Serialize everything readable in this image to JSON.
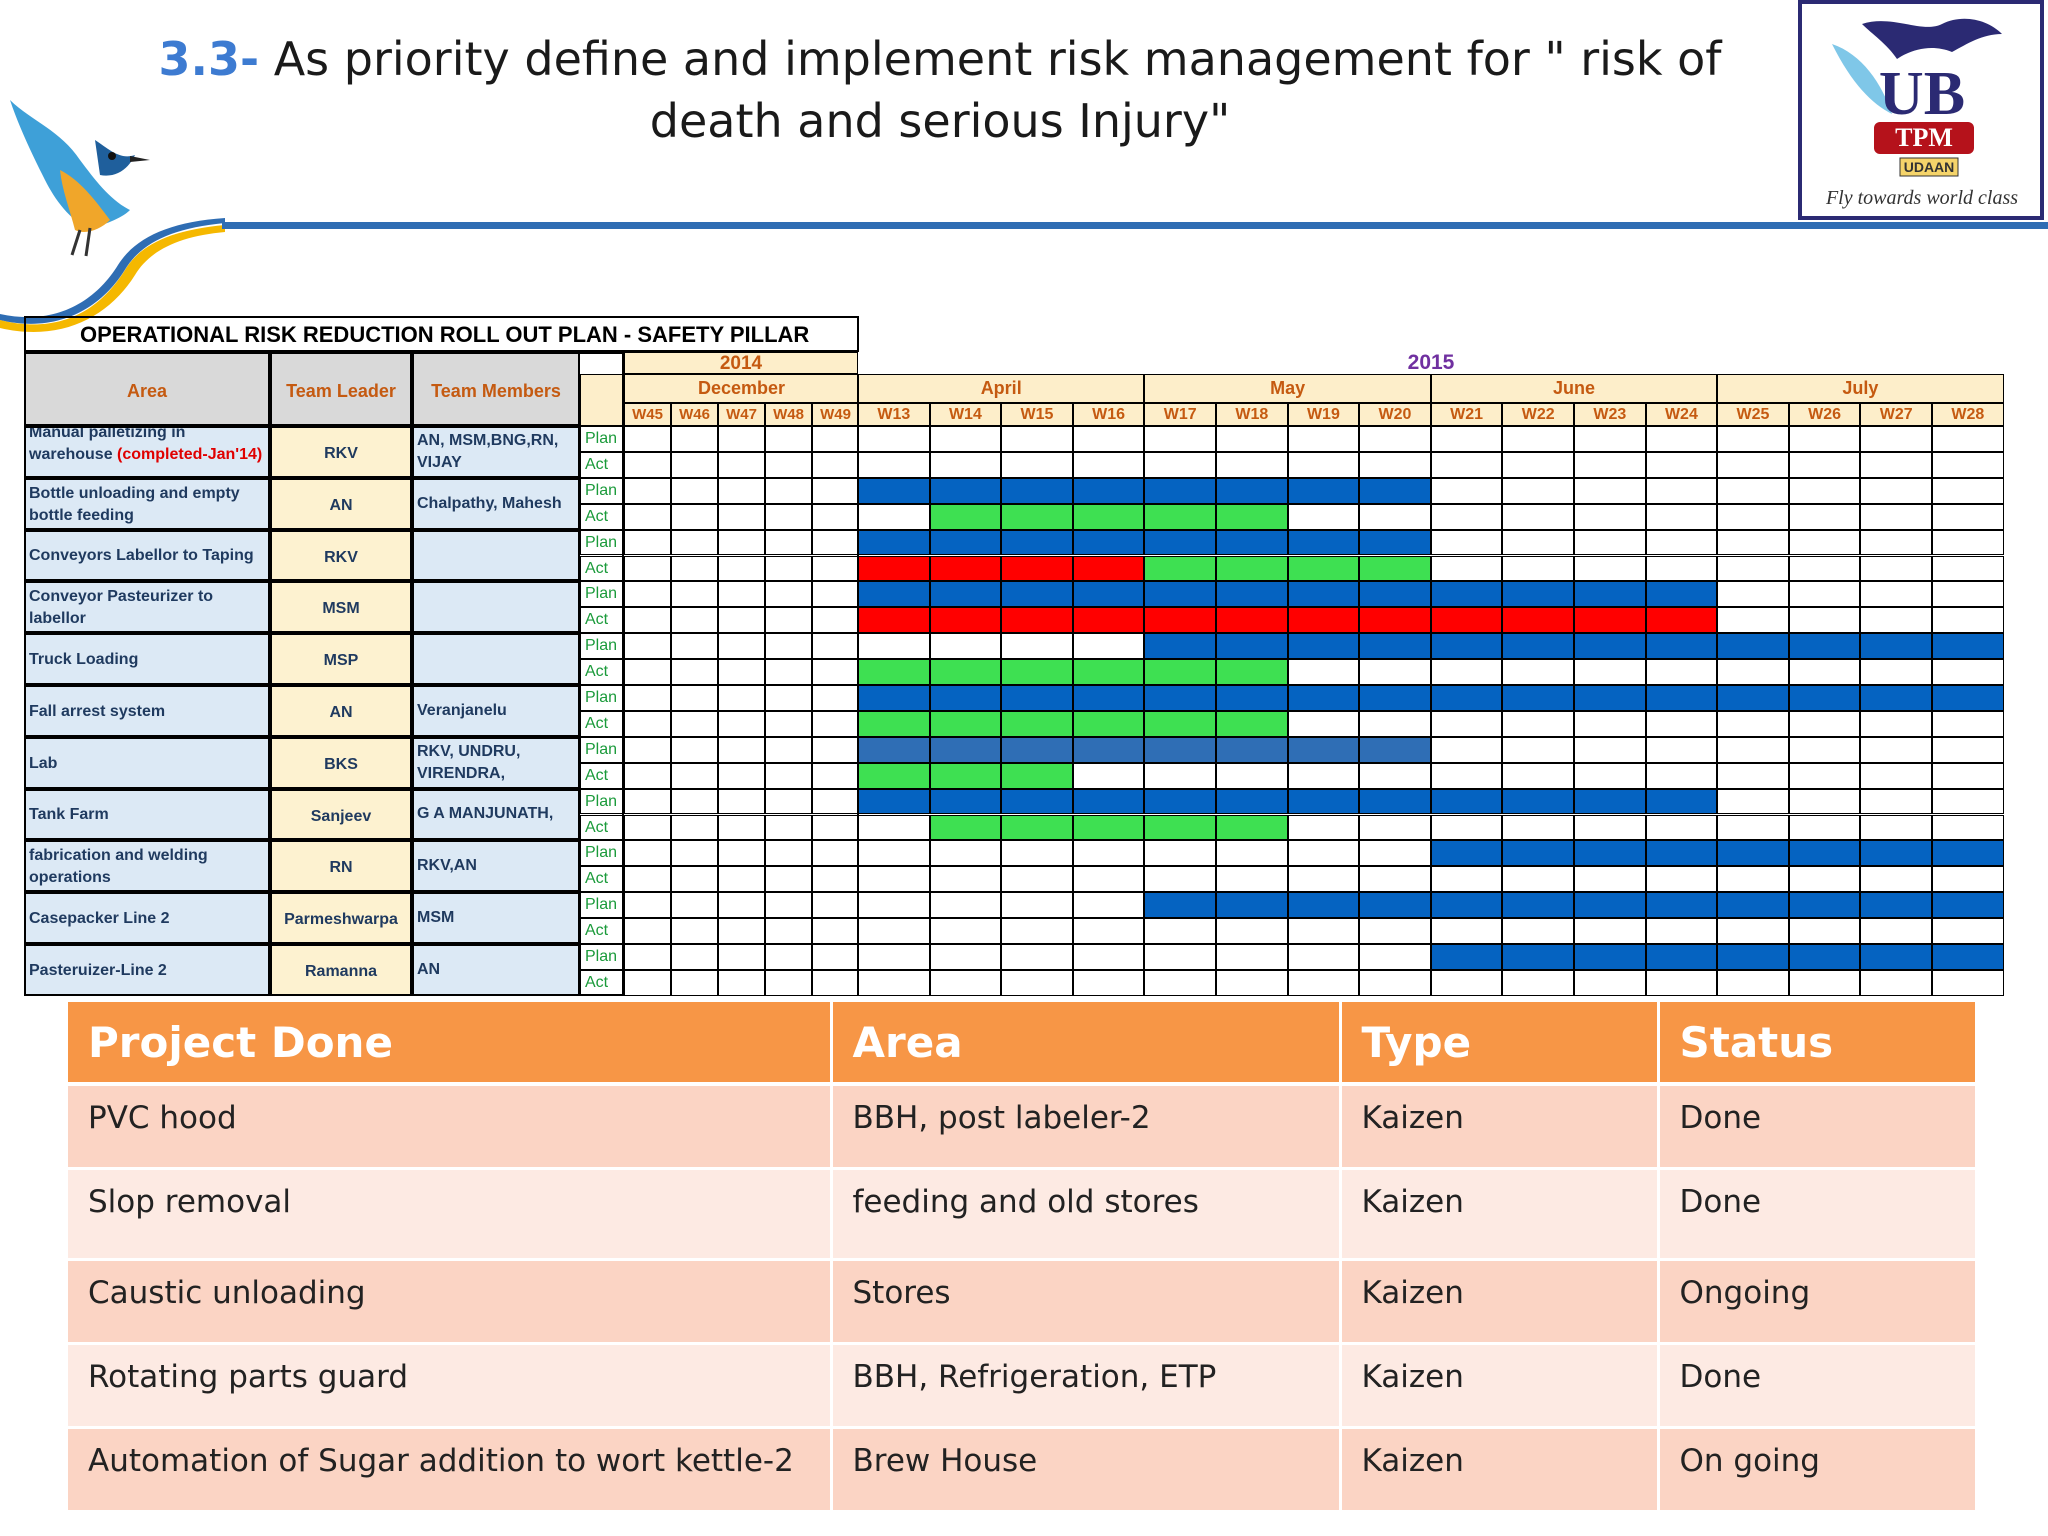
{
  "header": {
    "title_num": "3.3-",
    "title_text": " As priority define and implement risk management for \" risk of death and serious Injury\""
  },
  "logo": {
    "main": "UB",
    "badge": "TPM",
    "ribbon": "UDAAN",
    "tagline": "Fly towards world class"
  },
  "gantt": {
    "title": "OPERATIONAL RISK REDUCTION ROLL OUT  PLAN - SAFETY PILLAR",
    "year1": "2014",
    "year2": "2015",
    "col_area": "Area",
    "col_leader": "Team Leader",
    "col_members": "Team Members",
    "months": [
      {
        "name": "December",
        "weeks": 5
      },
      {
        "name": "April",
        "weeks": 4
      },
      {
        "name": "May",
        "weeks": 4
      },
      {
        "name": "June",
        "weeks": 4
      },
      {
        "name": "July",
        "weeks": 4
      }
    ],
    "weeks": [
      "W45",
      "W46",
      "W47",
      "W48",
      "W49",
      "W13",
      "W14",
      "W15",
      "W16",
      "W17",
      "W18",
      "W19",
      "W20",
      "W21",
      "W22",
      "W23",
      "W24",
      "W25",
      "W26",
      "W27",
      "W28"
    ],
    "plan_label": "Plan",
    "act_label": "Act",
    "colors": {
      "plan": "#0563c1",
      "plan_lab": "#2f6eb5",
      "act": "#3ee052",
      "delay": "#ff0000",
      "area_bg": "#dce9f5",
      "leader_bg": "#fdf2d0",
      "header_bg": "#fdeeca",
      "month_text": "#c55a11",
      "year2_text": "#7030a0"
    },
    "rows": [
      {
        "area": "Manual palletizing in warehouse ",
        "area_note": "(completed-Jan'14)",
        "leader": "RKV",
        "members": "AN, MSM,BNG,RN, VIJAY",
        "plan": "",
        "act": ""
      },
      {
        "area": "Bottle unloading and empty bottle feeding",
        "leader": "AN",
        "members": "Chalpathy, Mahesh",
        "plan": "PPPPPPPP",
        "act": "-GGGGG"
      },
      {
        "area": "Conveyors Labellor to Taping",
        "leader": "RKV",
        "members": "",
        "plan": "PPPPPPPP",
        "act": "RRRRGGGG"
      },
      {
        "area": "Conveyor Pasteurizer to labellor",
        "leader": "MSM",
        "members": "",
        "plan": "PPPPPPPPPPPP",
        "act": "RRRRRRRRRRRR"
      },
      {
        "area": "Truck Loading",
        "leader": "MSP",
        "members": "",
        "plan": "----PPPPPPPPPPPP",
        "act": "GGGGGG"
      },
      {
        "area": "Fall arrest system",
        "leader": "AN",
        "members": "Veranjanelu",
        "plan": "PPPPPPPPPPPPPPPP",
        "act": "GGGGGG"
      },
      {
        "area": "Lab",
        "leader": "BKS",
        "members": "RKV, UNDRU, VIRENDRA,",
        "plan": "LLLLLLLL",
        "act": "GGG"
      },
      {
        "area": "Tank Farm",
        "leader": "Sanjeev",
        "members": "G A MANJUNATH,",
        "plan": "PPPPPPPPPPPP",
        "act": "-GGGGG"
      },
      {
        "area": "fabrication and welding operations",
        "leader": "RN",
        "members": "RKV,AN",
        "plan": "--------PPPPPPPP",
        "act": ""
      },
      {
        "area": "Casepacker Line 2",
        "leader": "Parmeshwarpa",
        "members": "MSM",
        "plan": "----PPPPPPPPPPPP",
        "act": ""
      },
      {
        "area": "Pasteruizer-Line 2",
        "leader": "Ramanna",
        "members": "AN",
        "plan": "--------PPPPPPPP",
        "act": ""
      }
    ]
  },
  "projects": {
    "headers": [
      "Project Done",
      "Area",
      "Type",
      "Status"
    ],
    "rows": [
      [
        "PVC hood",
        "BBH, post labeler-2",
        "Kaizen",
        "Done"
      ],
      [
        "Slop removal",
        "feeding and old stores",
        "Kaizen",
        "Done"
      ],
      [
        "Caustic unloading",
        "Stores",
        "Kaizen",
        "Ongoing"
      ],
      [
        "Rotating parts guard",
        "BBH, Refrigeration, ETP",
        "Kaizen",
        "Done"
      ],
      [
        "Automation of Sugar addition to wort kettle-2",
        "Brew House",
        "Kaizen",
        "On going"
      ]
    ]
  }
}
